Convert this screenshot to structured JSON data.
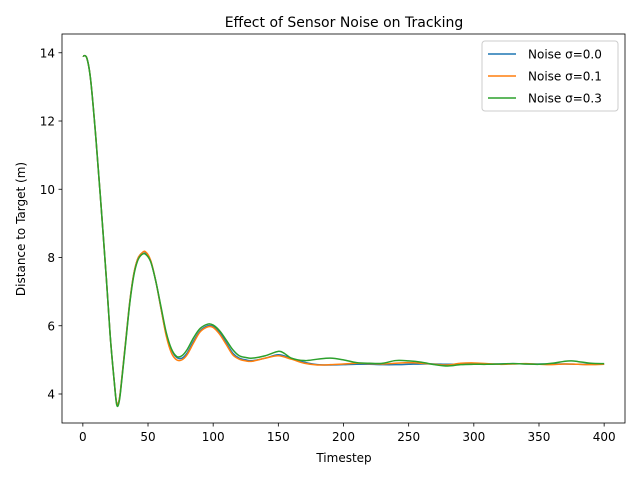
{
  "chart_data": {
    "type": "line",
    "title": "Effect of Sensor Noise on Tracking",
    "xlabel": "Timestep",
    "ylabel": "Distance to Target (m)",
    "xlim": [
      -16,
      416
    ],
    "ylim": [
      3.15,
      14.55
    ],
    "xticks": [
      0,
      50,
      100,
      150,
      200,
      250,
      300,
      350,
      400
    ],
    "yticks": [
      4,
      6,
      8,
      10,
      12,
      14
    ],
    "grid": false,
    "legend_position": "top-right",
    "series": [
      {
        "name": "Noise σ=0.0",
        "color": "#1f77b4",
        "points": [
          [
            0,
            13.9
          ],
          [
            3,
            13.85
          ],
          [
            6,
            13.2
          ],
          [
            10,
            11.5
          ],
          [
            14,
            9.5
          ],
          [
            18,
            7.4
          ],
          [
            21,
            5.7
          ],
          [
            24,
            4.4
          ],
          [
            26,
            3.72
          ],
          [
            28,
            3.85
          ],
          [
            30,
            4.5
          ],
          [
            33,
            5.6
          ],
          [
            36,
            6.7
          ],
          [
            39,
            7.5
          ],
          [
            42,
            7.95
          ],
          [
            45,
            8.12
          ],
          [
            48,
            8.15
          ],
          [
            52,
            7.9
          ],
          [
            56,
            7.3
          ],
          [
            60,
            6.5
          ],
          [
            64,
            5.75
          ],
          [
            68,
            5.3
          ],
          [
            72,
            5.07
          ],
          [
            76,
            5.05
          ],
          [
            80,
            5.2
          ],
          [
            85,
            5.55
          ],
          [
            90,
            5.85
          ],
          [
            96,
            6.0
          ],
          [
            100,
            5.98
          ],
          [
            105,
            5.8
          ],
          [
            110,
            5.5
          ],
          [
            115,
            5.2
          ],
          [
            120,
            5.05
          ],
          [
            125,
            5.0
          ],
          [
            130,
            4.98
          ],
          [
            140,
            5.05
          ],
          [
            150,
            5.15
          ],
          [
            160,
            5.05
          ],
          [
            170,
            4.93
          ],
          [
            180,
            4.86
          ],
          [
            190,
            4.85
          ],
          [
            200,
            4.86
          ],
          [
            210,
            4.87
          ],
          [
            220,
            4.87
          ],
          [
            230,
            4.86
          ],
          [
            240,
            4.86
          ],
          [
            250,
            4.87
          ],
          [
            260,
            4.88
          ],
          [
            270,
            4.88
          ],
          [
            280,
            4.87
          ],
          [
            290,
            4.88
          ],
          [
            300,
            4.89
          ],
          [
            310,
            4.88
          ],
          [
            320,
            4.88
          ],
          [
            330,
            4.89
          ],
          [
            340,
            4.88
          ],
          [
            350,
            4.88
          ],
          [
            360,
            4.88
          ],
          [
            370,
            4.88
          ],
          [
            380,
            4.87
          ],
          [
            390,
            4.87
          ],
          [
            400,
            4.87
          ]
        ]
      },
      {
        "name": "Noise σ=0.1",
        "color": "#ff7f0e",
        "points": [
          [
            0,
            13.9
          ],
          [
            3,
            13.85
          ],
          [
            6,
            13.2
          ],
          [
            10,
            11.5
          ],
          [
            14,
            9.5
          ],
          [
            18,
            7.4
          ],
          [
            21,
            5.7
          ],
          [
            24,
            4.4
          ],
          [
            26,
            3.72
          ],
          [
            28,
            3.85
          ],
          [
            30,
            4.5
          ],
          [
            33,
            5.6
          ],
          [
            36,
            6.7
          ],
          [
            39,
            7.5
          ],
          [
            42,
            7.95
          ],
          [
            45,
            8.12
          ],
          [
            48,
            8.17
          ],
          [
            52,
            7.92
          ],
          [
            56,
            7.3
          ],
          [
            60,
            6.5
          ],
          [
            64,
            5.7
          ],
          [
            68,
            5.2
          ],
          [
            72,
            5.0
          ],
          [
            76,
            5.0
          ],
          [
            80,
            5.15
          ],
          [
            85,
            5.5
          ],
          [
            90,
            5.82
          ],
          [
            96,
            5.97
          ],
          [
            100,
            5.95
          ],
          [
            105,
            5.75
          ],
          [
            110,
            5.45
          ],
          [
            115,
            5.15
          ],
          [
            120,
            5.02
          ],
          [
            125,
            4.97
          ],
          [
            130,
            4.96
          ],
          [
            140,
            5.05
          ],
          [
            150,
            5.12
          ],
          [
            160,
            5.02
          ],
          [
            170,
            4.9
          ],
          [
            180,
            4.85
          ],
          [
            190,
            4.86
          ],
          [
            200,
            4.88
          ],
          [
            210,
            4.9
          ],
          [
            220,
            4.89
          ],
          [
            230,
            4.88
          ],
          [
            240,
            4.9
          ],
          [
            250,
            4.92
          ],
          [
            260,
            4.9
          ],
          [
            270,
            4.87
          ],
          [
            280,
            4.85
          ],
          [
            290,
            4.9
          ],
          [
            300,
            4.91
          ],
          [
            310,
            4.89
          ],
          [
            320,
            4.87
          ],
          [
            330,
            4.88
          ],
          [
            340,
            4.89
          ],
          [
            350,
            4.87
          ],
          [
            360,
            4.86
          ],
          [
            370,
            4.88
          ],
          [
            380,
            4.87
          ],
          [
            390,
            4.86
          ],
          [
            400,
            4.87
          ]
        ]
      },
      {
        "name": "Noise σ=0.3",
        "color": "#2ca02c",
        "points": [
          [
            0,
            13.9
          ],
          [
            3,
            13.85
          ],
          [
            6,
            13.2
          ],
          [
            10,
            11.5
          ],
          [
            14,
            9.5
          ],
          [
            18,
            7.4
          ],
          [
            21,
            5.7
          ],
          [
            24,
            4.4
          ],
          [
            26,
            3.68
          ],
          [
            28,
            3.8
          ],
          [
            30,
            4.45
          ],
          [
            33,
            5.55
          ],
          [
            36,
            6.65
          ],
          [
            39,
            7.45
          ],
          [
            42,
            7.9
          ],
          [
            45,
            8.08
          ],
          [
            48,
            8.1
          ],
          [
            52,
            7.88
          ],
          [
            56,
            7.3
          ],
          [
            60,
            6.55
          ],
          [
            64,
            5.8
          ],
          [
            68,
            5.32
          ],
          [
            72,
            5.1
          ],
          [
            76,
            5.12
          ],
          [
            80,
            5.3
          ],
          [
            85,
            5.65
          ],
          [
            90,
            5.92
          ],
          [
            96,
            6.05
          ],
          [
            100,
            6.02
          ],
          [
            105,
            5.85
          ],
          [
            110,
            5.58
          ],
          [
            115,
            5.3
          ],
          [
            120,
            5.12
          ],
          [
            125,
            5.07
          ],
          [
            130,
            5.05
          ],
          [
            140,
            5.12
          ],
          [
            150,
            5.25
          ],
          [
            155,
            5.18
          ],
          [
            160,
            5.05
          ],
          [
            170,
            4.98
          ],
          [
            180,
            5.02
          ],
          [
            190,
            5.05
          ],
          [
            200,
            5.0
          ],
          [
            210,
            4.92
          ],
          [
            220,
            4.9
          ],
          [
            230,
            4.9
          ],
          [
            240,
            4.98
          ],
          [
            250,
            4.97
          ],
          [
            260,
            4.93
          ],
          [
            270,
            4.86
          ],
          [
            280,
            4.82
          ],
          [
            290,
            4.86
          ],
          [
            300,
            4.87
          ],
          [
            310,
            4.87
          ],
          [
            320,
            4.88
          ],
          [
            330,
            4.89
          ],
          [
            340,
            4.88
          ],
          [
            350,
            4.87
          ],
          [
            360,
            4.9
          ],
          [
            370,
            4.96
          ],
          [
            375,
            4.97
          ],
          [
            380,
            4.95
          ],
          [
            390,
            4.9
          ],
          [
            400,
            4.89
          ]
        ]
      }
    ]
  }
}
